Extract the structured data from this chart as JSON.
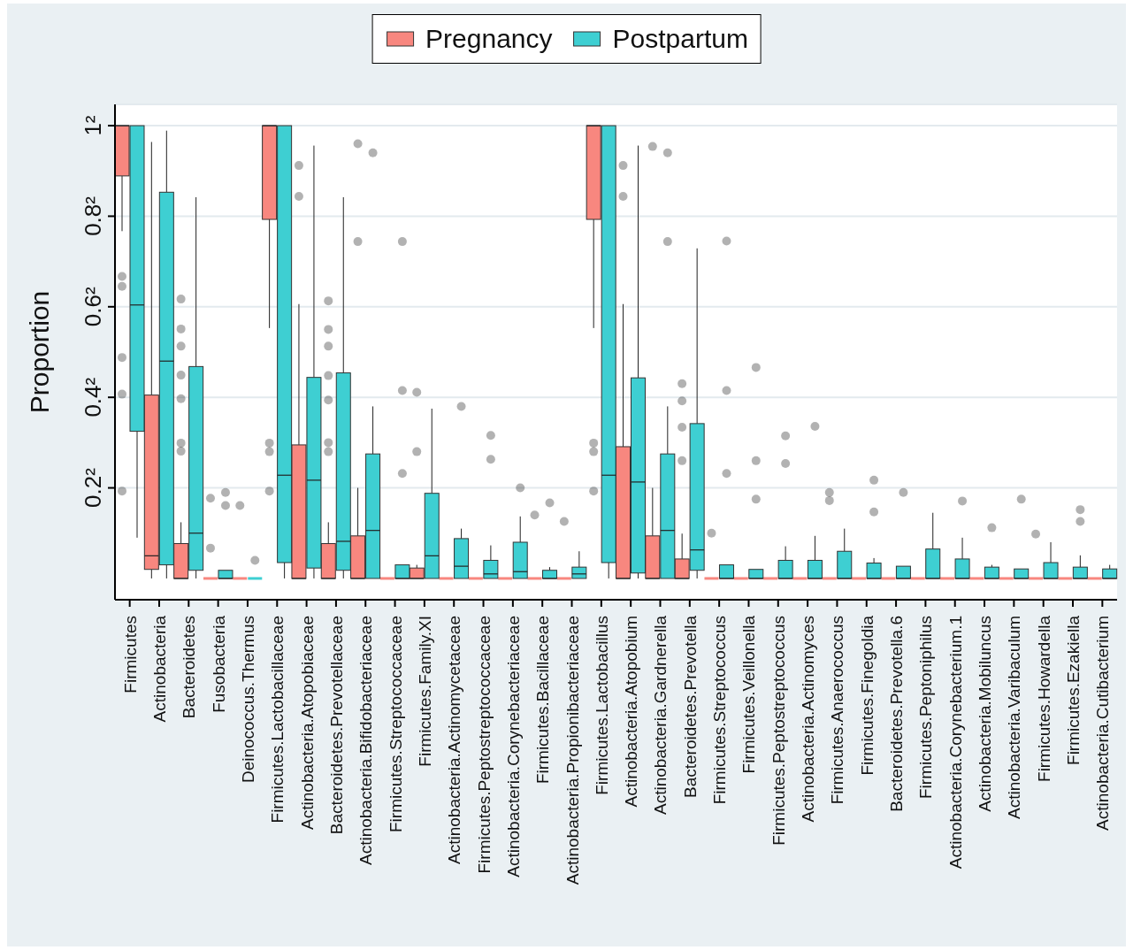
{
  "chart_data": {
    "type": "box",
    "ylabel": "Proportion",
    "legend": "top",
    "grid": "y",
    "ylim": [
      -0.047,
      1.047
    ],
    "yticks": [
      {
        "value": 0.2,
        "label": "0.2²"
      },
      {
        "value": 0.4,
        "label": "0.4²"
      },
      {
        "value": 0.6,
        "label": "0.6²"
      },
      {
        "value": 0.8,
        "label": "0.8²"
      },
      {
        "value": 1,
        "label": "1²"
      }
    ],
    "categories": [
      "Firmicutes",
      "Actinobacteria",
      "Bacteroidetes",
      "Fusobacteria",
      "Deinococcus.Thermus",
      "Firmicutes.Lactobacillaceae",
      "Actinobacteria.Atopobiaceae",
      "Bacteroidetes.Prevotellaceae",
      "Actinobacteria.Bifidobacteriaceae",
      "Firmicutes.Streptococcaceae",
      "Firmicutes.Family.XI",
      "Actinobacteria.Actinomycetaceae",
      "Firmicutes.Peptostreptococcaceae",
      "Actinobacteria.Corynebacteriaceae",
      "Firmicutes.Bacillaceae",
      "Actinobacteria.Propionibacteriaceae",
      "Firmicutes.Lactobacillus",
      "Actinobacteria.Atopobium",
      "Actinobacteria.Gardnerella",
      "Bacteroidetes.Prevotella",
      "Firmicutes.Streptococcus",
      "Firmicutes.Veillonella",
      "Firmicutes.Peptostreptococcus",
      "Actinobacteria.Actinomyces",
      "Firmicutes.Anaerococcus",
      "Firmicutes.Finegoldia",
      "Bacteroidetes.Prevotella.6",
      "Firmicutes.Peptoniphilus",
      "Actinobacteria.Corynebacterium.1",
      "Actinobacteria.Mobiluncus",
      "Actinobacteria.Varibaculum",
      "Firmicutes.Howardella",
      "Firmicutes.Ezakiella",
      "Actinobacteria.Cutibacterium"
    ],
    "series": [
      {
        "name": "Pregnancy",
        "color": "#f8877f",
        "boxes": [
          {
            "low": 0.767,
            "q1": 0.889,
            "median": 1,
            "q3": 1,
            "high": 1,
            "outliers": [
              0.667,
              0.645,
              0.488,
              0.407,
              0.193
            ]
          },
          {
            "low": 0,
            "q1": 0.02,
            "median": 0.05,
            "q3": 0.405,
            "high": 0.964
          },
          {
            "low": 0,
            "q1": 0,
            "median": 0,
            "q3": 0.077,
            "high": 0.124,
            "outliers": [
              0.617,
              0.551,
              0.513,
              0.449,
              0.397,
              0.299,
              0.281
            ]
          },
          {
            "low": 0,
            "q1": 0,
            "median": 0,
            "q3": 0,
            "high": 0,
            "outliers": [
              0.177,
              0.067
            ]
          },
          {
            "low": 0,
            "q1": 0,
            "median": 0,
            "q3": 0,
            "high": 0,
            "outliers": [
              0.161
            ]
          },
          {
            "low": 0.553,
            "q1": 0.793,
            "median": 1,
            "q3": 1,
            "high": 1,
            "outliers": [
              0.299,
              0.28,
              0.193
            ]
          },
          {
            "low": 0,
            "q1": 0,
            "median": 0,
            "q3": 0.295,
            "high": 0.606,
            "outliers": [
              0.912,
              0.844
            ]
          },
          {
            "low": 0,
            "q1": 0,
            "median": 0,
            "q3": 0.077,
            "high": 0.124,
            "outliers": [
              0.613,
              0.55,
              0.513,
              0.448,
              0.394,
              0.3,
              0.28
            ]
          },
          {
            "low": 0,
            "q1": 0,
            "median": 0,
            "q3": 0.094,
            "high": 0.2,
            "outliers": [
              0.96,
              0.744
            ]
          },
          {
            "low": 0,
            "q1": 0,
            "median": 0,
            "q3": 0,
            "high": 0
          },
          {
            "low": 0,
            "q1": 0,
            "median": 0,
            "q3": 0.023,
            "high": 0.03,
            "outliers": [
              0.411,
              0.28
            ]
          },
          {
            "low": 0,
            "q1": 0,
            "median": 0,
            "q3": 0,
            "high": 0
          },
          {
            "low": 0,
            "q1": 0,
            "median": 0,
            "q3": 0,
            "high": 0
          },
          {
            "low": 0,
            "q1": 0,
            "median": 0,
            "q3": 0,
            "high": 0
          },
          {
            "low": 0,
            "q1": 0,
            "median": 0,
            "q3": 0,
            "high": 0,
            "outliers": [
              0.14
            ]
          },
          {
            "low": 0,
            "q1": 0,
            "median": 0,
            "q3": 0,
            "high": 0,
            "outliers": [
              0.126
            ]
          },
          {
            "low": 0.553,
            "q1": 0.793,
            "median": 1,
            "q3": 1,
            "high": 1,
            "outliers": [
              0.299,
              0.28,
              0.193
            ]
          },
          {
            "low": 0,
            "q1": 0,
            "median": 0,
            "q3": 0.291,
            "high": 0.606,
            "outliers": [
              0.912,
              0.844
            ]
          },
          {
            "low": 0,
            "q1": 0,
            "median": 0,
            "q3": 0.094,
            "high": 0.2,
            "outliers": [
              0.954
            ]
          },
          {
            "low": 0,
            "q1": 0,
            "median": 0,
            "q3": 0.043,
            "high": 0.099,
            "outliers": [
              0.43,
              0.392,
              0.334,
              0.26
            ]
          },
          {
            "low": 0,
            "q1": 0,
            "median": 0,
            "q3": 0,
            "high": 0,
            "outliers": [
              0.1
            ]
          },
          {
            "low": 0,
            "q1": 0,
            "median": 0,
            "q3": 0,
            "high": 0
          },
          {
            "low": 0,
            "q1": 0,
            "median": 0,
            "q3": 0,
            "high": 0
          },
          {
            "low": 0,
            "q1": 0,
            "median": 0,
            "q3": 0,
            "high": 0
          },
          {
            "low": 0,
            "q1": 0,
            "median": 0,
            "q3": 0,
            "high": 0,
            "outliers": [
              0.19,
              0.172
            ]
          },
          {
            "low": 0,
            "q1": 0,
            "median": 0,
            "q3": 0,
            "high": 0
          },
          {
            "low": 0,
            "q1": 0,
            "median": 0,
            "q3": 0,
            "high": 0
          },
          {
            "low": 0,
            "q1": 0,
            "median": 0,
            "q3": 0,
            "high": 0
          },
          {
            "low": 0,
            "q1": 0,
            "median": 0,
            "q3": 0,
            "high": 0
          },
          {
            "low": 0,
            "q1": 0,
            "median": 0,
            "q3": 0,
            "high": 0
          },
          {
            "low": 0,
            "q1": 0,
            "median": 0,
            "q3": 0,
            "high": 0
          },
          {
            "low": 0,
            "q1": 0,
            "median": 0,
            "q3": 0,
            "high": 0,
            "outliers": [
              0.098
            ]
          },
          {
            "low": 0,
            "q1": 0,
            "median": 0,
            "q3": 0,
            "high": 0
          },
          {
            "low": 0,
            "q1": 0,
            "median": 0,
            "q3": 0,
            "high": 0
          }
        ]
      },
      {
        "name": "Postpartum",
        "color": "#3ecfd2",
        "boxes": [
          {
            "low": 0.09,
            "q1": 0.325,
            "median": 0.604,
            "q3": 1,
            "high": 1
          },
          {
            "low": 0,
            "q1": 0.03,
            "median": 0.48,
            "q3": 0.853,
            "high": 0.989
          },
          {
            "low": 0,
            "q1": 0.018,
            "median": 0.1,
            "q3": 0.468,
            "high": 0.842
          },
          {
            "low": 0,
            "q1": 0,
            "median": 0,
            "q3": 0.018,
            "high": 0.018,
            "outliers": [
              0.19,
              0.161
            ]
          },
          {
            "low": 0,
            "q1": 0,
            "median": 0,
            "q3": 0,
            "high": 0,
            "outliers": [
              0.04
            ]
          },
          {
            "low": 0,
            "q1": 0.035,
            "median": 0.228,
            "q3": 1,
            "high": 1
          },
          {
            "low": 0,
            "q1": 0.023,
            "median": 0.217,
            "q3": 0.444,
            "high": 0.956
          },
          {
            "low": 0,
            "q1": 0.018,
            "median": 0.082,
            "q3": 0.454,
            "high": 0.842
          },
          {
            "low": 0,
            "q1": 0,
            "median": 0.106,
            "q3": 0.275,
            "high": 0.38,
            "outliers": [
              0.94
            ]
          },
          {
            "low": 0,
            "q1": 0,
            "median": 0,
            "q3": 0.03,
            "high": 0.03,
            "outliers": [
              0.744,
              0.415,
              0.232
            ]
          },
          {
            "low": 0,
            "q1": 0,
            "median": 0.05,
            "q3": 0.188,
            "high": 0.375
          },
          {
            "low": 0,
            "q1": 0,
            "median": 0.027,
            "q3": 0.088,
            "high": 0.11,
            "outliers": [
              0.38
            ]
          },
          {
            "low": 0,
            "q1": 0,
            "median": 0.01,
            "q3": 0.04,
            "high": 0.073,
            "outliers": [
              0.316,
              0.263
            ]
          },
          {
            "low": 0,
            "q1": 0,
            "median": 0.015,
            "q3": 0.08,
            "high": 0.137,
            "outliers": [
              0.2
            ]
          },
          {
            "low": 0,
            "q1": 0,
            "median": 0,
            "q3": 0.018,
            "high": 0.025,
            "outliers": [
              0.167
            ]
          },
          {
            "low": 0,
            "q1": 0,
            "median": 0.01,
            "q3": 0.025,
            "high": 0.06
          },
          {
            "low": 0,
            "q1": 0.035,
            "median": 0.228,
            "q3": 1,
            "high": 1
          },
          {
            "low": 0,
            "q1": 0.012,
            "median": 0.213,
            "q3": 0.443,
            "high": 0.956
          },
          {
            "low": 0,
            "q1": 0,
            "median": 0.106,
            "q3": 0.275,
            "high": 0.38,
            "outliers": [
              0.94,
              0.744
            ]
          },
          {
            "low": 0,
            "q1": 0.018,
            "median": 0.063,
            "q3": 0.342,
            "high": 0.729
          },
          {
            "low": 0,
            "q1": 0,
            "median": 0,
            "q3": 0.03,
            "high": 0.03,
            "outliers": [
              0.745,
              0.415,
              0.232
            ]
          },
          {
            "low": 0,
            "q1": 0,
            "median": 0,
            "q3": 0.02,
            "high": 0.02,
            "outliers": [
              0.466,
              0.26,
              0.175
            ]
          },
          {
            "low": 0,
            "q1": 0,
            "median": 0,
            "q3": 0.04,
            "high": 0.071,
            "outliers": [
              0.315,
              0.254
            ]
          },
          {
            "low": 0,
            "q1": 0,
            "median": 0,
            "q3": 0.04,
            "high": 0.094,
            "outliers": [
              0.336
            ]
          },
          {
            "low": 0,
            "q1": 0,
            "median": 0,
            "q3": 0.06,
            "high": 0.11
          },
          {
            "low": 0,
            "q1": 0,
            "median": 0,
            "q3": 0.034,
            "high": 0.045,
            "outliers": [
              0.217,
              0.147
            ]
          },
          {
            "low": 0,
            "q1": 0,
            "median": 0,
            "q3": 0.027,
            "high": 0.027,
            "outliers": [
              0.19
            ]
          },
          {
            "low": 0,
            "q1": 0,
            "median": 0,
            "q3": 0.065,
            "high": 0.145
          },
          {
            "low": 0,
            "q1": 0,
            "median": 0,
            "q3": 0.043,
            "high": 0.09,
            "outliers": [
              0.171
            ]
          },
          {
            "low": 0,
            "q1": 0,
            "median": 0,
            "q3": 0.025,
            "high": 0.03,
            "outliers": [
              0.112
            ]
          },
          {
            "low": 0,
            "q1": 0,
            "median": 0,
            "q3": 0.021,
            "high": 0.021,
            "outliers": [
              0.175
            ]
          },
          {
            "low": 0,
            "q1": 0,
            "median": 0,
            "q3": 0.035,
            "high": 0.08
          },
          {
            "low": 0,
            "q1": 0,
            "median": 0,
            "q3": 0.025,
            "high": 0.051,
            "outliers": [
              0.152,
              0.126
            ]
          },
          {
            "low": 0,
            "q1": 0,
            "median": 0,
            "q3": 0.021,
            "high": 0.03
          }
        ]
      }
    ]
  }
}
